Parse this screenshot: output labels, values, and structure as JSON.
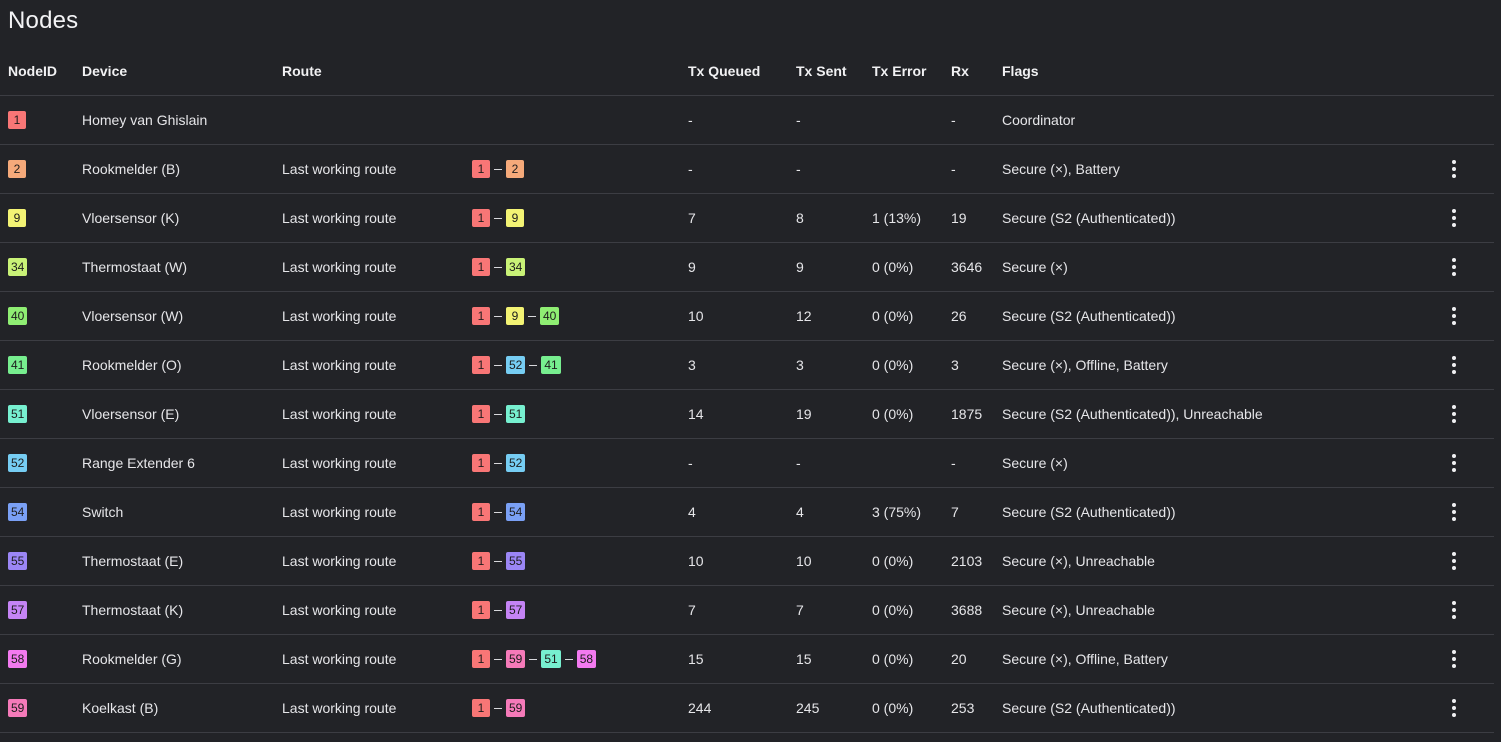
{
  "title": "Nodes",
  "columns": {
    "nodeid": "NodeID",
    "device": "Device",
    "route": "Route",
    "tx_queued": "Tx Queued",
    "tx_sent": "Tx Sent",
    "tx_error": "Tx Error",
    "rx": "Rx",
    "flags": "Flags"
  },
  "badge_colors": {
    "1": "#f87676",
    "2": "#f5a97a",
    "9": "#f3f374",
    "34": "#c9f277",
    "40": "#8fee73",
    "41": "#77ee8f",
    "51": "#77f0d0",
    "52": "#76cdf3",
    "54": "#7aa0f5",
    "55": "#9b86f5",
    "57": "#c584f5",
    "58": "#f37af0",
    "59": "#f57ab9"
  },
  "rows": [
    {
      "id": "1",
      "device": "Homey van Ghislain",
      "route_label": "",
      "route": [],
      "tx_queued": "-",
      "tx_sent": "-",
      "tx_error": "",
      "rx": "-",
      "flags": "Coordinator",
      "menu": false
    },
    {
      "id": "2",
      "device": "Rookmelder (B)",
      "route_label": "Last working route",
      "route": [
        "1",
        "2"
      ],
      "tx_queued": "-",
      "tx_sent": "-",
      "tx_error": "",
      "rx": "-",
      "flags": "Secure (×), Battery",
      "menu": true
    },
    {
      "id": "9",
      "device": "Vloersensor (K)",
      "route_label": "Last working route",
      "route": [
        "1",
        "9"
      ],
      "tx_queued": "7",
      "tx_sent": "8",
      "tx_error": "1 (13%)",
      "rx": "19",
      "flags": "Secure (S2 (Authenticated))",
      "menu": true
    },
    {
      "id": "34",
      "device": "Thermostaat (W)",
      "route_label": "Last working route",
      "route": [
        "1",
        "34"
      ],
      "tx_queued": "9",
      "tx_sent": "9",
      "tx_error": "0 (0%)",
      "rx": "3646",
      "flags": "Secure (×)",
      "menu": true
    },
    {
      "id": "40",
      "device": "Vloersensor (W)",
      "route_label": "Last working route",
      "route": [
        "1",
        "9",
        "40"
      ],
      "tx_queued": "10",
      "tx_sent": "12",
      "tx_error": "0 (0%)",
      "rx": "26",
      "flags": "Secure (S2 (Authenticated))",
      "menu": true
    },
    {
      "id": "41",
      "device": "Rookmelder (O)",
      "route_label": "Last working route",
      "route": [
        "1",
        "52",
        "41"
      ],
      "tx_queued": "3",
      "tx_sent": "3",
      "tx_error": "0 (0%)",
      "rx": "3",
      "flags": "Secure (×), Offline, Battery",
      "menu": true
    },
    {
      "id": "51",
      "device": "Vloersensor (E)",
      "route_label": "Last working route",
      "route": [
        "1",
        "51"
      ],
      "tx_queued": "14",
      "tx_sent": "19",
      "tx_error": "0 (0%)",
      "rx": "1875",
      "flags": "Secure (S2 (Authenticated)), Unreachable",
      "menu": true
    },
    {
      "id": "52",
      "device": "Range Extender 6",
      "route_label": "Last working route",
      "route": [
        "1",
        "52"
      ],
      "tx_queued": "-",
      "tx_sent": "-",
      "tx_error": "",
      "rx": "-",
      "flags": "Secure (×)",
      "menu": true
    },
    {
      "id": "54",
      "device": "Switch",
      "route_label": "Last working route",
      "route": [
        "1",
        "54"
      ],
      "tx_queued": "4",
      "tx_sent": "4",
      "tx_error": "3 (75%)",
      "rx": "7",
      "flags": "Secure (S2 (Authenticated))",
      "menu": true
    },
    {
      "id": "55",
      "device": "Thermostaat (E)",
      "route_label": "Last working route",
      "route": [
        "1",
        "55"
      ],
      "tx_queued": "10",
      "tx_sent": "10",
      "tx_error": "0 (0%)",
      "rx": "2103",
      "flags": "Secure (×), Unreachable",
      "menu": true
    },
    {
      "id": "57",
      "device": "Thermostaat (K)",
      "route_label": "Last working route",
      "route": [
        "1",
        "57"
      ],
      "tx_queued": "7",
      "tx_sent": "7",
      "tx_error": "0 (0%)",
      "rx": "3688",
      "flags": "Secure (×), Unreachable",
      "menu": true
    },
    {
      "id": "58",
      "device": "Rookmelder (G)",
      "route_label": "Last working route",
      "route": [
        "1",
        "59",
        "51",
        "58"
      ],
      "tx_queued": "15",
      "tx_sent": "15",
      "tx_error": "0 (0%)",
      "rx": "20",
      "flags": "Secure (×), Offline, Battery",
      "menu": true
    },
    {
      "id": "59",
      "device": "Koelkast (B)",
      "route_label": "Last working route",
      "route": [
        "1",
        "59"
      ],
      "tx_queued": "244",
      "tx_sent": "245",
      "tx_error": "0 (0%)",
      "rx": "253",
      "flags": "Secure (S2 (Authenticated))",
      "menu": true
    }
  ]
}
